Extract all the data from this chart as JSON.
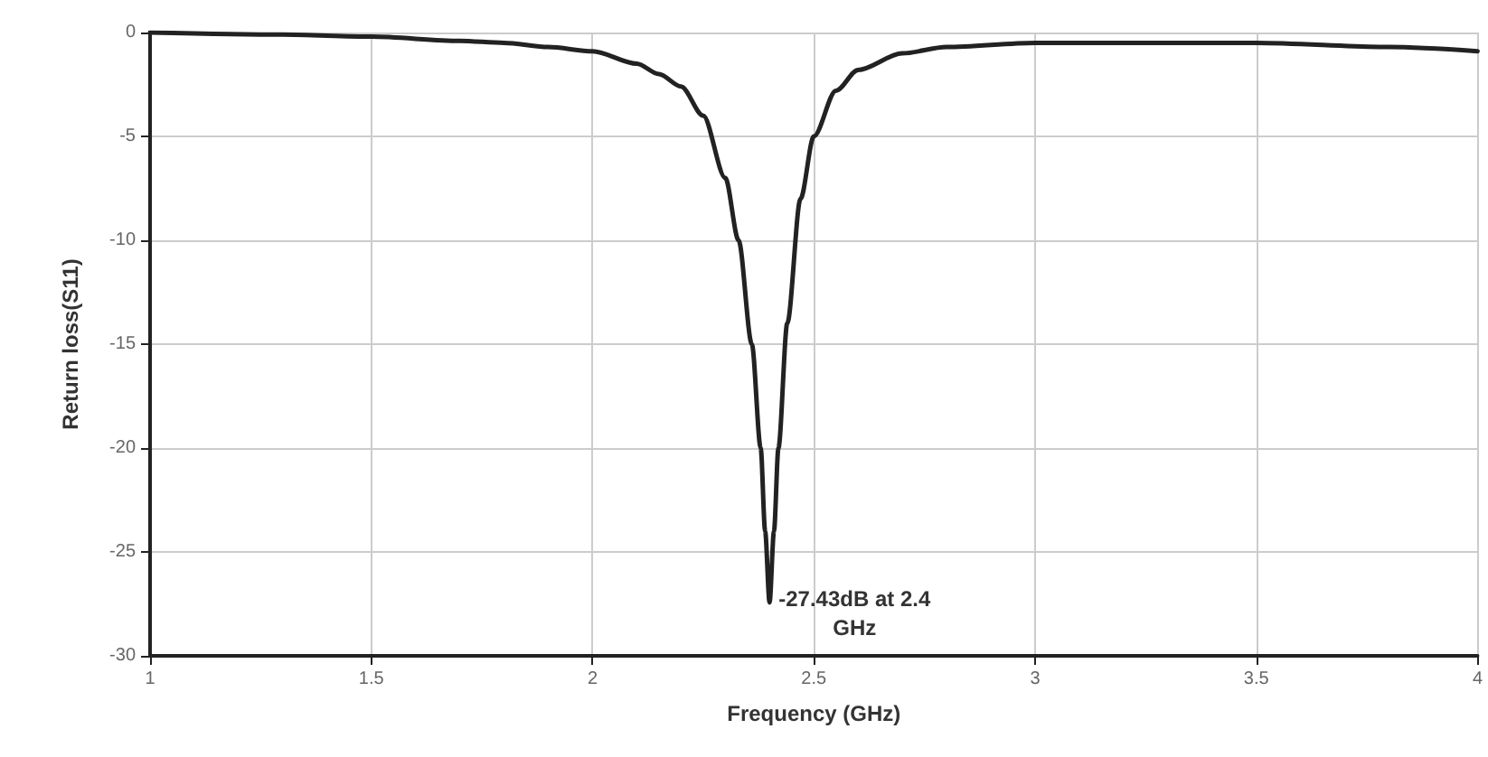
{
  "chart_data": {
    "type": "line",
    "xlabel": "Frequency (GHz)",
    "ylabel": "Return loss(S11)",
    "x": [
      1.0,
      1.3,
      1.5,
      1.7,
      1.8,
      1.9,
      2.0,
      2.1,
      2.15,
      2.2,
      2.25,
      2.3,
      2.33,
      2.36,
      2.38,
      2.39,
      2.4,
      2.41,
      2.42,
      2.44,
      2.47,
      2.5,
      2.55,
      2.6,
      2.7,
      2.8,
      3.0,
      3.5,
      3.8,
      4.0
    ],
    "series": [
      {
        "color": "#222222",
        "values": [
          0,
          -0.1,
          -0.2,
          -0.4,
          -0.5,
          -0.7,
          -0.9,
          -1.5,
          -2.0,
          -2.6,
          -4,
          -7,
          -10,
          -15,
          -20,
          -24,
          -27.43,
          -24,
          -20,
          -14,
          -8,
          -5,
          -2.8,
          -1.8,
          -1.0,
          -0.7,
          -0.5,
          -0.5,
          -0.7,
          -0.9
        ]
      }
    ],
    "xlim": [
      1,
      4
    ],
    "xticks": [
      1,
      1.5,
      2,
      2.5,
      3,
      3.5,
      4
    ],
    "ylim": [
      -30,
      0
    ],
    "yticks": [
      -30,
      -25,
      -20,
      -15,
      -10,
      -5,
      0
    ],
    "grid": true,
    "marker": "none",
    "line_style": "solid",
    "annotations": [
      {
        "text": "-27.43dB at 2.4\nGHz",
        "x": 2.4,
        "y": -27.43
      }
    ]
  }
}
